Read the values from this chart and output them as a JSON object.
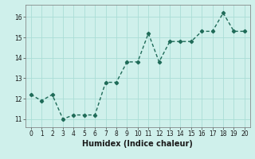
{
  "x": [
    0,
    1,
    2,
    3,
    4,
    5,
    6,
    7,
    8,
    9,
    10,
    11,
    12,
    13,
    14,
    15,
    16,
    17,
    18,
    19,
    20
  ],
  "y": [
    12.2,
    11.9,
    12.2,
    11.0,
    11.2,
    11.2,
    11.2,
    12.8,
    12.8,
    13.8,
    13.8,
    15.2,
    13.8,
    14.8,
    14.8,
    14.8,
    15.3,
    15.3,
    16.2,
    15.3,
    15.3
  ],
  "xlabel": "Humidex (Indice chaleur)",
  "line_color": "#1f6b58",
  "marker": "D",
  "marker_size": 2.2,
  "bg_color": "#cff0eb",
  "grid_color": "#aaddd6",
  "ylim": [
    10.6,
    16.6
  ],
  "xlim": [
    -0.5,
    20.5
  ],
  "yticks": [
    11,
    12,
    13,
    14,
    15,
    16
  ],
  "xticks": [
    0,
    1,
    2,
    3,
    4,
    5,
    6,
    7,
    8,
    9,
    10,
    11,
    12,
    13,
    14,
    15,
    16,
    17,
    18,
    19,
    20
  ],
  "tick_fontsize": 5.5,
  "xlabel_fontsize": 7.0,
  "linewidth": 1.0
}
